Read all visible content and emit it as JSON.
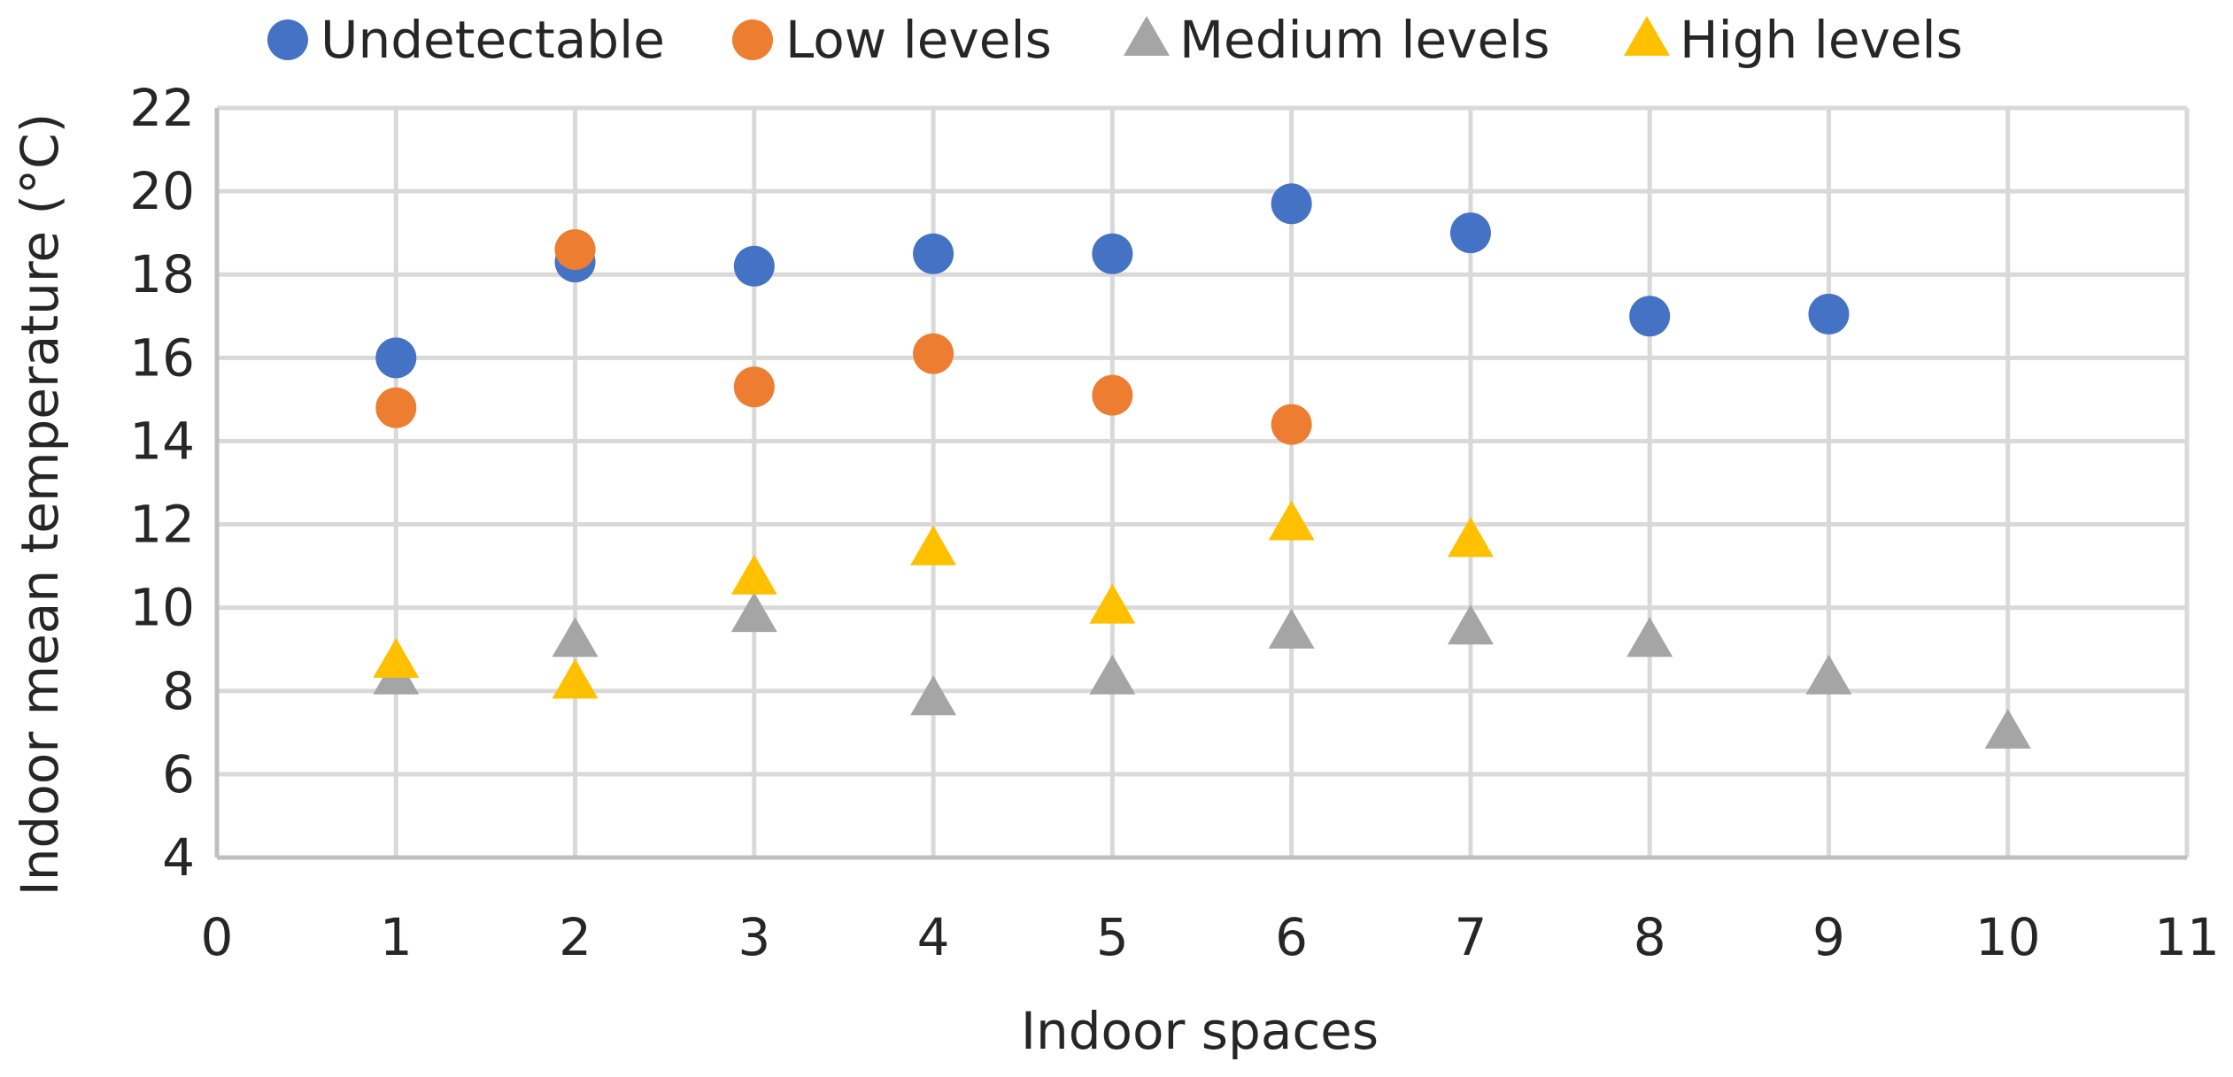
{
  "chart_data": {
    "type": "scatter",
    "title": "",
    "xlabel": "Indoor spaces",
    "ylabel": "Indoor mean temperature (°C)",
    "xlim": [
      0,
      11
    ],
    "ylim": [
      4,
      22
    ],
    "xticks": [
      0,
      1,
      2,
      3,
      4,
      5,
      6,
      7,
      8,
      9,
      10,
      11
    ],
    "yticks": [
      4,
      6,
      8,
      10,
      12,
      14,
      16,
      18,
      20,
      22
    ],
    "grid": true,
    "legend_position": "top",
    "series": [
      {
        "name": "Undetectable",
        "marker": "circle",
        "color": "#4472c4",
        "x": [
          1,
          2,
          3,
          4,
          5,
          6,
          7,
          8,
          9
        ],
        "y": [
          16.0,
          18.3,
          18.2,
          18.5,
          18.5,
          19.7,
          19.0,
          17.0,
          17.05
        ]
      },
      {
        "name": "Low levels",
        "marker": "circle",
        "color": "#ed7d31",
        "x": [
          1,
          2,
          3,
          4,
          5,
          6
        ],
        "y": [
          14.8,
          18.6,
          15.3,
          16.1,
          15.1,
          14.4
        ]
      },
      {
        "name": "Medium levels",
        "marker": "triangle",
        "color": "#a5a5a5",
        "x": [
          1,
          2,
          3,
          4,
          5,
          6,
          7,
          8,
          9,
          10
        ],
        "y": [
          8.3,
          9.2,
          9.8,
          7.8,
          8.3,
          9.4,
          9.5,
          9.2,
          8.3,
          7.0
        ]
      },
      {
        "name": "High levels",
        "marker": "triangle",
        "color": "#ffc000",
        "x": [
          1,
          2,
          3,
          4,
          5,
          6,
          7
        ],
        "y": [
          8.7,
          8.2,
          10.7,
          11.4,
          10.0,
          12.0,
          11.6
        ]
      }
    ]
  }
}
